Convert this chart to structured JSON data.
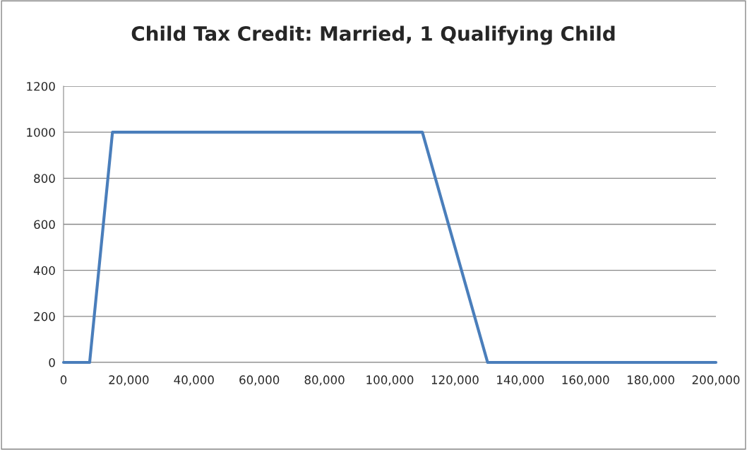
{
  "chart_data": {
    "type": "line",
    "title": "Child Tax Credit: Married, 1 Qualifying Child",
    "series": [
      {
        "color": "#4a7ebb",
        "x": [
          0,
          8000,
          15000,
          110000,
          130000,
          200000
        ],
        "values": [
          0,
          0,
          1000,
          1000,
          0,
          0
        ]
      }
    ],
    "xlim": [
      0,
      200000
    ],
    "xticks": [
      {
        "value": 0,
        "label": "0"
      },
      {
        "value": 20000,
        "label": "20,000"
      },
      {
        "value": 40000,
        "label": "40,000"
      },
      {
        "value": 60000,
        "label": "60,000"
      },
      {
        "value": 80000,
        "label": "80,000"
      },
      {
        "value": 100000,
        "label": "100,000"
      },
      {
        "value": 120000,
        "label": "120,000"
      },
      {
        "value": 140000,
        "label": "140,000"
      },
      {
        "value": 160000,
        "label": "160,000"
      },
      {
        "value": 180000,
        "label": "180,000"
      },
      {
        "value": 200000,
        "label": "200,000"
      }
    ],
    "ylim": [
      0,
      1200
    ],
    "yticks": [
      0,
      200,
      400,
      600,
      800,
      1000,
      1200
    ],
    "grid": "y",
    "legend": false,
    "marker": "none",
    "line_style": "solid"
  }
}
